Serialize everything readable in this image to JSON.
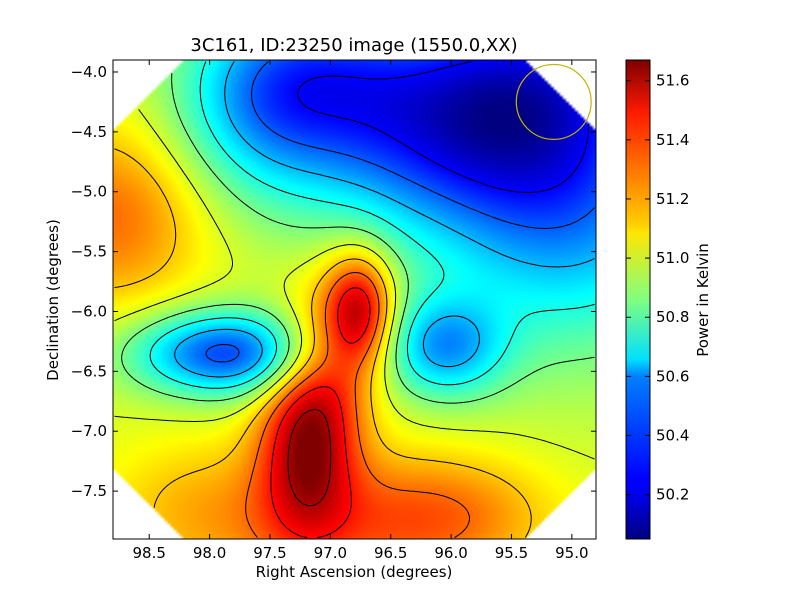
{
  "chart_data": {
    "type": "heatmap",
    "title": "3C161, ID:23250 image (1550.0,XX)",
    "xlabel": "Right Ascension (degrees)",
    "ylabel": "Declination (degrees)",
    "colorbar_label": "Power in Kelvin",
    "xlim": [
      98.8,
      94.8
    ],
    "ylim": [
      -7.9,
      -3.9
    ],
    "x_ticks": [
      98.5,
      98.0,
      97.5,
      97.0,
      96.5,
      96.0,
      95.5,
      95.0
    ],
    "x_tick_labels": [
      "98.5",
      "98.0",
      "97.5",
      "97.0",
      "96.5",
      "96.0",
      "95.5",
      "95.0"
    ],
    "y_ticks": [
      -4.0,
      -4.5,
      -5.0,
      -5.5,
      -6.0,
      -6.5,
      -7.0,
      -7.5
    ],
    "y_tick_labels": [
      "−4.0",
      "−4.5",
      "−5.0",
      "−5.5",
      "−6.0",
      "−6.5",
      "−7.0",
      "−7.5"
    ],
    "colorbar_range": [
      50.05,
      51.67
    ],
    "colorbar_ticks": [
      50.2,
      50.4,
      50.6,
      50.8,
      51.0,
      51.2,
      51.4,
      51.6
    ],
    "colorbar_tick_labels": [
      "50.2",
      "50.4",
      "50.6",
      "50.8",
      "51.0",
      "51.2",
      "51.4",
      "51.6"
    ],
    "colormap": "jet",
    "contour_levels": [
      50.25,
      50.4,
      50.55,
      50.7,
      50.85,
      51.0,
      51.15,
      51.3,
      51.45,
      51.6
    ],
    "contour_color": "#000000",
    "beam_circle": {
      "ra": 95.15,
      "dec": -4.25,
      "radius_deg": 0.31,
      "color": "#c8b400"
    },
    "components": [
      {
        "ra": 96.2,
        "dec": -4.4,
        "sigma_ra": 0.95,
        "sigma_dec": 0.65,
        "amplitude": -0.62
      },
      {
        "ra": 95.0,
        "dec": -5.2,
        "sigma_ra": 0.8,
        "sigma_dec": 0.8,
        "amplitude": -0.45
      },
      {
        "ra": 95.2,
        "dec": -4.0,
        "sigma_ra": 0.7,
        "sigma_dec": 0.6,
        "amplitude": -0.35
      },
      {
        "ra": 97.6,
        "dec": -4.2,
        "sigma_ra": 0.5,
        "sigma_dec": 0.55,
        "amplitude": -0.35
      },
      {
        "ra": 97.0,
        "dec": -3.95,
        "sigma_ra": 0.5,
        "sigma_dec": 0.45,
        "amplitude": -0.2
      },
      {
        "ra": 97.85,
        "dec": -6.35,
        "sigma_ra": 0.55,
        "sigma_dec": 0.25,
        "amplitude": -0.65
      },
      {
        "ra": 96.05,
        "dec": -6.3,
        "sigma_ra": 0.35,
        "sigma_dec": 0.3,
        "amplitude": -0.45
      },
      {
        "ra": 96.75,
        "dec": -6.0,
        "sigma_ra": 0.2,
        "sigma_dec": 0.35,
        "amplitude": 0.55
      },
      {
        "ra": 97.2,
        "dec": -7.05,
        "sigma_ra": 0.28,
        "sigma_dec": 0.55,
        "amplitude": 0.55
      },
      {
        "ra": 97.0,
        "dec": -6.4,
        "sigma_ra": 0.25,
        "sigma_dec": 0.55,
        "amplitude": 0.2
      },
      {
        "ra": 98.8,
        "dec": -5.2,
        "sigma_ra": 0.55,
        "sigma_dec": 0.55,
        "amplitude": 0.3
      },
      {
        "ra": 97.0,
        "dec": -7.8,
        "sigma_ra": 0.9,
        "sigma_dec": 0.45,
        "amplitude": 0.25
      },
      {
        "ra": 96.0,
        "dec": -7.7,
        "sigma_ra": 0.6,
        "sigma_dec": 0.35,
        "amplitude": 0.2
      },
      {
        "ra": 98.2,
        "dec": -7.6,
        "sigma_ra": 0.5,
        "sigma_dec": 0.4,
        "amplitude": 0.1
      }
    ],
    "base_level": 51.0,
    "observation_clip": "octagon"
  }
}
